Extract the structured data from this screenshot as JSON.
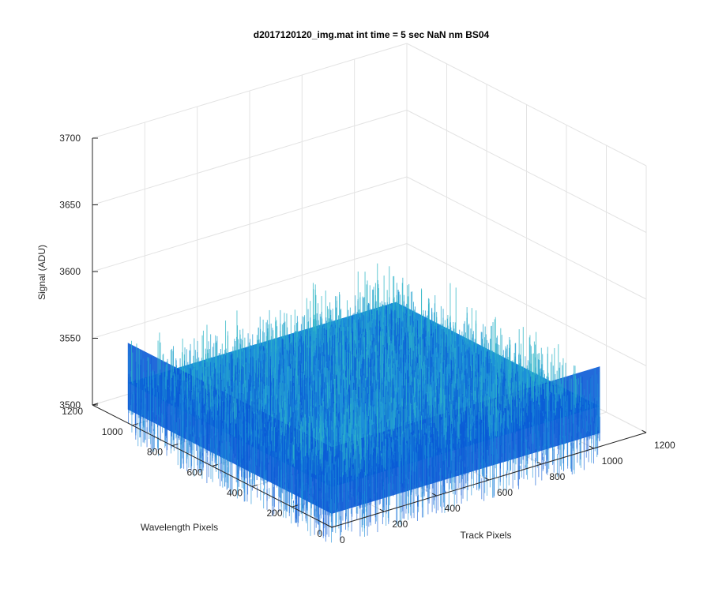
{
  "chart_data": {
    "type": "surface3d",
    "title": "d2017120120_img.mat int time = 5 sec  NaN nm BS04",
    "xlabel": "Track Pixels",
    "ylabel": "Wavelength Pixels",
    "zlabel": "Signal (ADU)",
    "xlim": [
      0,
      1200
    ],
    "ylim": [
      0,
      1200
    ],
    "zlim": [
      3500,
      3700
    ],
    "xticks": [
      "0",
      "200",
      "400",
      "600",
      "800",
      "1000",
      "1200"
    ],
    "yticks": [
      "0",
      "200",
      "400",
      "600",
      "800",
      "1000",
      "1200"
    ],
    "zticks": [
      "3500",
      "3550",
      "3600",
      "3650",
      "3700"
    ],
    "data_extent": {
      "x": [
        1,
        1024
      ],
      "y": [
        1,
        1024
      ]
    },
    "surface_mean": 3530,
    "surface_noise_range": [
      3510,
      3560
    ],
    "colormap": "parula",
    "colors": {
      "low": "#0a5ad6",
      "mid": "#1c8fd9",
      "high": "#2fb7c6"
    },
    "grid": true
  }
}
